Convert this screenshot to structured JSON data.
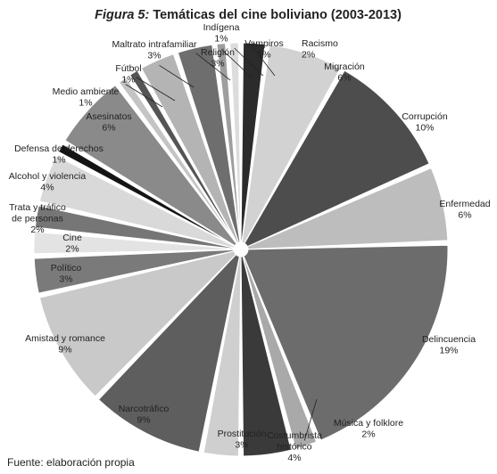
{
  "figure_label": "Figura 5:",
  "source": "Fuente: elaboración propia",
  "chart_data": {
    "type": "pie",
    "title": "Temáticas del cine boliviano (2003-2013)",
    "slices": [
      {
        "label": "Racismo",
        "pct_label": "2%",
        "value": 2,
        "color": "#2b2b2b"
      },
      {
        "label": "Migración",
        "pct_label": "6%",
        "value": 6,
        "color": "#d2d2d2"
      },
      {
        "label": "Corrupción",
        "pct_label": "10%",
        "value": 10,
        "color": "#4d4d4d"
      },
      {
        "label": "Enfermedad",
        "pct_label": "6%",
        "value": 6,
        "color": "#bdbdbd"
      },
      {
        "label": "Delincuencia",
        "pct_label": "19%",
        "value": 19,
        "color": "#6c6c6c"
      },
      {
        "label": "Música y folklore",
        "pct_label": "2%",
        "value": 2,
        "color": "#a9a9a9"
      },
      {
        "label": "Costumbrista histórico",
        "pct_label": "4%",
        "value": 4,
        "color": "#3a3a3a"
      },
      {
        "label": "Prostitución",
        "pct_label": "3%",
        "value": 3,
        "color": "#cfcfcf"
      },
      {
        "label": "Narcotráfico",
        "pct_label": "9%",
        "value": 9,
        "color": "#5e5e5e"
      },
      {
        "label": "Amistad y romance",
        "pct_label": "9%",
        "value": 9,
        "color": "#c9c9c9"
      },
      {
        "label": "Político",
        "pct_label": "3%",
        "value": 3,
        "color": "#7a7a7a"
      },
      {
        "label": "Cine",
        "pct_label": "2%",
        "value": 2,
        "color": "#e3e3e3"
      },
      {
        "label": "Trata y tráfico de personas",
        "pct_label": "2%",
        "value": 2,
        "color": "#767676"
      },
      {
        "label": "Alcohol y violencia",
        "pct_label": "4%",
        "value": 4,
        "color": "#d9d9d9"
      },
      {
        "label": "Defensa de derechos",
        "pct_label": "1%",
        "value": 1,
        "color": "#141414"
      },
      {
        "label": "Asesinatos",
        "pct_label": "6%",
        "value": 6,
        "color": "#8a8a8a"
      },
      {
        "label": "Medio ambiente",
        "pct_label": "1%",
        "value": 1,
        "color": "#c4c4c4"
      },
      {
        "label": "Fútbol",
        "pct_label": "1%",
        "value": 1,
        "color": "#555555"
      },
      {
        "label": "Maltrato intrafamiliar",
        "pct_label": "3%",
        "value": 3,
        "color": "#b4b4b4"
      },
      {
        "label": "Religión",
        "pct_label": "3%",
        "value": 3,
        "color": "#6e6e6e"
      },
      {
        "label": "Indígena",
        "pct_label": "1%",
        "value": 1,
        "color": "#9e9e9e"
      },
      {
        "label": "Vampiros",
        "pct_label": "1%",
        "value": 1,
        "color": "#dcdcdc"
      }
    ],
    "legend": "none"
  }
}
